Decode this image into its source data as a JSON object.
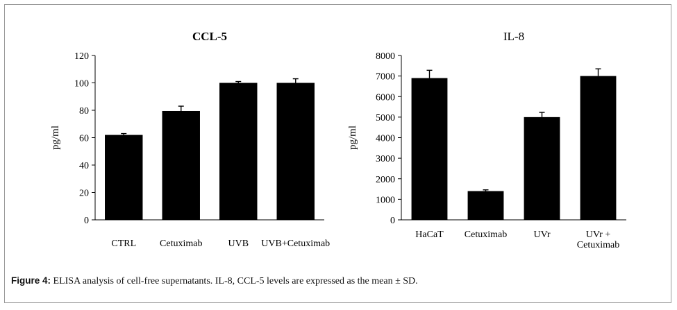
{
  "chart_data": [
    {
      "type": "bar",
      "title": "CCL-5",
      "ylabel": "pg/ml",
      "xlabel": "",
      "ylim": [
        0,
        120
      ],
      "yticks": [
        0,
        20,
        40,
        60,
        80,
        100,
        120
      ],
      "categories": [
        "CTRL",
        "Cetuximab",
        "UVB",
        "UVB+Cetuximab"
      ],
      "values": [
        62,
        79.5,
        100,
        100
      ],
      "errors": [
        1,
        3.5,
        1,
        3
      ],
      "grid": false,
      "color": "#000000"
    },
    {
      "type": "bar",
      "title": "IL-8",
      "ylabel": "pg/ml",
      "xlabel": "",
      "ylim": [
        0,
        8000
      ],
      "yticks": [
        0,
        1000,
        2000,
        3000,
        4000,
        5000,
        6000,
        7000,
        8000
      ],
      "categories": [
        "HaCaT",
        "Cetuximab",
        "UVr",
        "UVr + Cetuximab"
      ],
      "category_lines": [
        [
          "HaCaT"
        ],
        [
          "Cetuximab"
        ],
        [
          "UVr"
        ],
        [
          "UVr +",
          "Cetuximab"
        ]
      ],
      "values": [
        6900,
        1400,
        5000,
        7000
      ],
      "errors": [
        380,
        60,
        230,
        350
      ],
      "grid": false,
      "color": "#000000"
    }
  ],
  "caption": {
    "label": "Figure 4:",
    "text": " ELISA analysis of cell-free supernatants. IL-8, CCL-5 levels are expressed as the mean ± SD."
  }
}
